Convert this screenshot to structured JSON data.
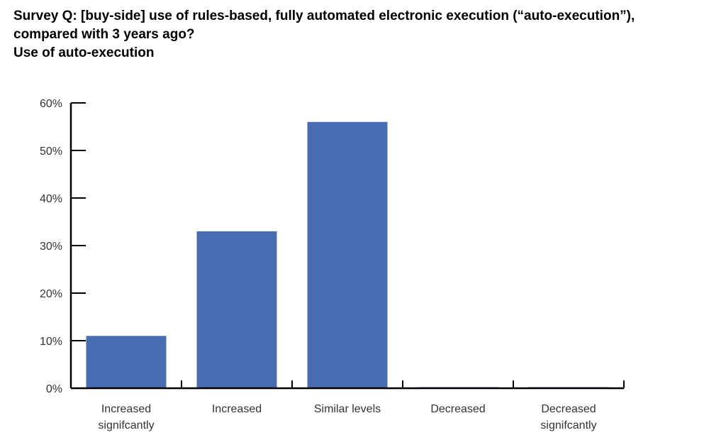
{
  "title": {
    "line1": "Survey Q: [buy-side] use of rules-based, fully automated electronic execution (“auto-execution”),",
    "line2": "compared with 3 years ago?",
    "line3": "Use of auto-execution"
  },
  "chart_data": {
    "type": "bar",
    "categories": [
      [
        "Increased",
        "signifcantly"
      ],
      [
        "Increased"
      ],
      [
        "Similar levels"
      ],
      [
        "Decreased"
      ],
      [
        "Decreased",
        "signifcantly"
      ]
    ],
    "values": [
      11,
      33,
      56,
      0,
      0
    ],
    "ylim": [
      0,
      60
    ],
    "yticks": [
      0,
      10,
      20,
      30,
      40,
      50,
      60
    ],
    "ytick_labels": [
      "0%",
      "10%",
      "20%",
      "30%",
      "40%",
      "50%",
      "60%"
    ],
    "xlabel": "",
    "ylabel": "",
    "grid": false,
    "bar_color": "#4a6cb3"
  }
}
